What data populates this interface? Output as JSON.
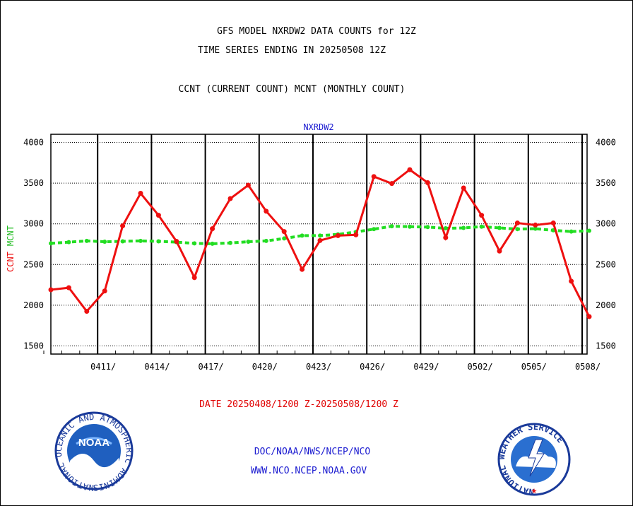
{
  "header": {
    "title_line1": "GFS MODEL NXRDW2 DATA COUNTS for 12Z",
    "title_line2": "TIME SERIES ENDING IN 20250508 12Z",
    "title_line3": "CCNT (CURRENT COUNT) MCNT (MONTHLY COUNT)"
  },
  "footer": {
    "date_range": "DATE 20250408/1200 Z-20250508/1200 Z",
    "link1": "DOC/NOAA/NWS/NCEP/NCO",
    "link2": "WWW.NCO.NCEP.NOAA.GOV",
    "noaa_logo_text": "NOAA",
    "noaa_ring_text": "NATIONAL OCEANIC AND ATMOSPHERIC ADMINISTRATION · U.S. DEPARTMENT OF COMMERCE",
    "nws_ring_text": "NATIONAL WEATHER SERVICE"
  },
  "colors": {
    "ccnt": "#ee1010",
    "mcnt": "#22dd22",
    "blue_text": "#1a1ad0",
    "axis": "#000000"
  },
  "chart_data": {
    "type": "line",
    "title": "NXRDW2",
    "ylabel_ccnt": "CCNT",
    "ylabel_mcnt": "MCNT",
    "ylim": [
      1400,
      4100
    ],
    "yticks": [
      1500,
      2000,
      2500,
      3000,
      3500,
      4000
    ],
    "grid": true,
    "x_days": [
      "0408",
      "0409",
      "0410",
      "0411",
      "0412",
      "0413",
      "0414",
      "0415",
      "0416",
      "0417",
      "0418",
      "0419",
      "0420",
      "0421",
      "0422",
      "0423",
      "0424",
      "0425",
      "0426",
      "0427",
      "0428",
      "0429",
      "0430",
      "0501",
      "0502",
      "0503",
      "0504",
      "0505",
      "0506",
      "0507",
      "0508"
    ],
    "xtick_labels": [
      {
        "day": "0411",
        "label": "0411/"
      },
      {
        "day": "0414",
        "label": "0414/"
      },
      {
        "day": "0417",
        "label": "0417/"
      },
      {
        "day": "0420",
        "label": "0420/"
      },
      {
        "day": "0423",
        "label": "0423/"
      },
      {
        "day": "0426",
        "label": "0426/"
      },
      {
        "day": "0429",
        "label": "0429/"
      },
      {
        "day": "0502",
        "label": "0502/"
      },
      {
        "day": "0505",
        "label": "0505/"
      },
      {
        "day": "0508",
        "label": "0508/"
      }
    ],
    "series": [
      {
        "name": "CCNT",
        "values": [
          2190,
          2215,
          1925,
          2175,
          2975,
          3375,
          3105,
          2785,
          2340,
          2940,
          3310,
          3475,
          3155,
          2905,
          2440,
          2795,
          2855,
          2865,
          3580,
          3495,
          3665,
          3505,
          2830,
          3440,
          3105,
          2665,
          3010,
          2985,
          3010,
          2295,
          1860
        ]
      },
      {
        "name": "MCNT",
        "values": [
          2760,
          2775,
          2790,
          2780,
          2785,
          2790,
          2785,
          2775,
          2760,
          2755,
          2765,
          2780,
          2790,
          2820,
          2855,
          2855,
          2870,
          2900,
          2935,
          2970,
          2965,
          2960,
          2945,
          2950,
          2965,
          2950,
          2935,
          2940,
          2920,
          2905,
          2915
        ]
      }
    ]
  }
}
